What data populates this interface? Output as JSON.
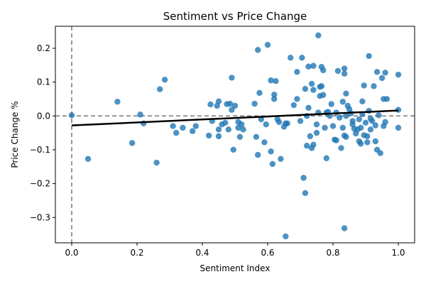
{
  "chart_data": {
    "type": "scatter",
    "title": "Sentiment vs Price Change",
    "xlabel": "Sentiment Index",
    "ylabel": "Price Change %",
    "xlim": [
      -0.05,
      1.05
    ],
    "ylim": [
      -0.375,
      0.265
    ],
    "xticks": [
      0.0,
      0.2,
      0.4,
      0.6,
      0.8,
      1.0
    ],
    "xtick_labels": [
      "0.0",
      "0.2",
      "0.4",
      "0.6",
      "0.8",
      "1.0"
    ],
    "yticks": [
      -0.3,
      -0.2,
      -0.1,
      0.0,
      0.1,
      0.2
    ],
    "ytick_labels": [
      "−0.3",
      "−0.2",
      "−0.1",
      "0.0",
      "0.1",
      "0.2"
    ],
    "grid": false,
    "reference_lines": {
      "vertical_x": 0.0,
      "horizontal_y": 0.0,
      "color": "#777777",
      "style": "dashed"
    },
    "trend_line": {
      "x": [
        0.0,
        1.0
      ],
      "y": [
        -0.028,
        0.016
      ],
      "color": "#000000"
    },
    "point_color": "#1f77b4",
    "points": [
      [
        0.0,
        0.002
      ],
      [
        0.05,
        -0.127
      ],
      [
        0.14,
        0.042
      ],
      [
        0.185,
        -0.08
      ],
      [
        0.21,
        0.004
      ],
      [
        0.22,
        -0.022
      ],
      [
        0.26,
        -0.138
      ],
      [
        0.27,
        0.079
      ],
      [
        0.285,
        0.107
      ],
      [
        0.31,
        -0.03
      ],
      [
        0.32,
        -0.05
      ],
      [
        0.34,
        -0.035
      ],
      [
        0.37,
        -0.045
      ],
      [
        0.38,
        -0.03
      ],
      [
        0.42,
        -0.058
      ],
      [
        0.425,
        0.034
      ],
      [
        0.43,
        -0.015
      ],
      [
        0.445,
        0.03
      ],
      [
        0.45,
        0.043
      ],
      [
        0.45,
        -0.04
      ],
      [
        0.45,
        -0.06
      ],
      [
        0.46,
        -0.025
      ],
      [
        0.47,
        -0.02
      ],
      [
        0.475,
        0.035
      ],
      [
        0.48,
        -0.04
      ],
      [
        0.485,
        0.036
      ],
      [
        0.49,
        0.113
      ],
      [
        0.49,
        0.018
      ],
      [
        0.495,
        -0.1
      ],
      [
        0.5,
        0.03
      ],
      [
        0.51,
        -0.035
      ],
      [
        0.51,
        -0.018
      ],
      [
        0.515,
        -0.062
      ],
      [
        0.52,
        -0.025
      ],
      [
        0.525,
        -0.04
      ],
      [
        0.56,
        0.036
      ],
      [
        0.565,
        -0.062
      ],
      [
        0.57,
        -0.115
      ],
      [
        0.57,
        0.195
      ],
      [
        0.575,
        0.068
      ],
      [
        0.58,
        -0.01
      ],
      [
        0.59,
        -0.078
      ],
      [
        0.595,
        -0.025
      ],
      [
        0.6,
        0.21
      ],
      [
        0.61,
        -0.105
      ],
      [
        0.61,
        0.105
      ],
      [
        0.615,
        -0.142
      ],
      [
        0.62,
        0.05
      ],
      [
        0.62,
        0.063
      ],
      [
        0.625,
        0.103
      ],
      [
        0.63,
        -0.01
      ],
      [
        0.635,
        -0.018
      ],
      [
        0.64,
        -0.127
      ],
      [
        0.65,
        -0.032
      ],
      [
        0.655,
        -0.022
      ],
      [
        0.655,
        -0.356
      ],
      [
        0.66,
        -0.022
      ],
      [
        0.67,
        0.172
      ],
      [
        0.68,
        0.032
      ],
      [
        0.69,
        0.13
      ],
      [
        0.69,
        0.05
      ],
      [
        0.7,
        -0.015
      ],
      [
        0.705,
        0.172
      ],
      [
        0.71,
        -0.183
      ],
      [
        0.715,
        -0.228
      ],
      [
        0.715,
        0.08
      ],
      [
        0.72,
        -0.088
      ],
      [
        0.72,
        0.0
      ],
      [
        0.725,
        0.024
      ],
      [
        0.725,
        0.146
      ],
      [
        0.73,
        -0.06
      ],
      [
        0.735,
        0.095
      ],
      [
        0.735,
        -0.095
      ],
      [
        0.74,
        0.148
      ],
      [
        0.74,
        0.077
      ],
      [
        0.74,
        -0.085
      ],
      [
        0.75,
        -0.05
      ],
      [
        0.75,
        -0.025
      ],
      [
        0.755,
        0.238
      ],
      [
        0.755,
        0.01
      ],
      [
        0.76,
        0.086
      ],
      [
        0.76,
        0.059
      ],
      [
        0.765,
        0.088
      ],
      [
        0.765,
        0.145
      ],
      [
        0.77,
        0.135
      ],
      [
        0.77,
        0.062
      ],
      [
        0.775,
        -0.035
      ],
      [
        0.78,
        0.01
      ],
      [
        0.78,
        -0.125
      ],
      [
        0.785,
        0.012
      ],
      [
        0.79,
        0.0
      ],
      [
        0.795,
        0.035
      ],
      [
        0.8,
        -0.03
      ],
      [
        0.805,
        -0.07
      ],
      [
        0.81,
        -0.072
      ],
      [
        0.81,
        0.01
      ],
      [
        0.815,
        0.133
      ],
      [
        0.82,
        -0.005
      ],
      [
        0.825,
        -0.095
      ],
      [
        0.83,
        -0.035
      ],
      [
        0.83,
        0.042
      ],
      [
        0.835,
        0.125
      ],
      [
        0.835,
        -0.058
      ],
      [
        0.835,
        0.14
      ],
      [
        0.835,
        -0.332
      ],
      [
        0.84,
        -0.062
      ],
      [
        0.84,
        0.066
      ],
      [
        0.84,
        0.0
      ],
      [
        0.845,
        0.03
      ],
      [
        0.85,
        0.02
      ],
      [
        0.855,
        0.008
      ],
      [
        0.86,
        -0.025
      ],
      [
        0.86,
        -0.015
      ],
      [
        0.865,
        -0.038
      ],
      [
        0.87,
        -0.052
      ],
      [
        0.875,
        -0.04
      ],
      [
        0.88,
        -0.01
      ],
      [
        0.88,
        -0.075
      ],
      [
        0.885,
        -0.035
      ],
      [
        0.885,
        -0.082
      ],
      [
        0.89,
        0.043
      ],
      [
        0.89,
        0.005
      ],
      [
        0.895,
        0.09
      ],
      [
        0.895,
        -0.057
      ],
      [
        0.9,
        -0.02
      ],
      [
        0.905,
        -0.06
      ],
      [
        0.905,
        -0.078
      ],
      [
        0.91,
        0.015
      ],
      [
        0.91,
        0.177
      ],
      [
        0.915,
        -0.008
      ],
      [
        0.915,
        -0.04
      ],
      [
        0.92,
        -0.015
      ],
      [
        0.925,
        0.088
      ],
      [
        0.93,
        -0.028
      ],
      [
        0.93,
        -0.075
      ],
      [
        0.935,
        -0.1
      ],
      [
        0.935,
        0.13
      ],
      [
        0.94,
        0.002
      ],
      [
        0.945,
        -0.11
      ],
      [
        0.95,
        0.112
      ],
      [
        0.955,
        0.05
      ],
      [
        0.955,
        -0.03
      ],
      [
        0.96,
        0.128
      ],
      [
        0.96,
        -0.018
      ],
      [
        0.965,
        0.05
      ],
      [
        1.0,
        0.018
      ],
      [
        1.0,
        -0.035
      ],
      [
        1.0,
        0.122
      ]
    ]
  }
}
